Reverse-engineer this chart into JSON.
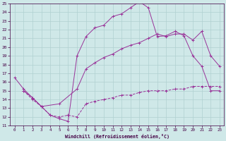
{
  "bg_color": "#cfe8e8",
  "grid_color": "#b0d0d0",
  "line_color": "#993399",
  "xlim": [
    -0.5,
    23.5
  ],
  "ylim": [
    11,
    25
  ],
  "xticks": [
    0,
    1,
    2,
    3,
    4,
    5,
    6,
    7,
    8,
    9,
    10,
    11,
    12,
    13,
    14,
    15,
    16,
    17,
    18,
    19,
    20,
    21,
    22,
    23
  ],
  "yticks": [
    11,
    12,
    13,
    14,
    15,
    16,
    17,
    18,
    19,
    20,
    21,
    22,
    23,
    24,
    25
  ],
  "xlabel": "Windchill (Refroidissement éolien,°C)",
  "line1_x": [
    0,
    1,
    2,
    3,
    4,
    5,
    6,
    7,
    8,
    9,
    10,
    11,
    12,
    13,
    14,
    15,
    16,
    17,
    18,
    19,
    20,
    21,
    22,
    23
  ],
  "line1_y": [
    16.5,
    15.2,
    14.2,
    13.2,
    12.2,
    11.8,
    11.5,
    19.0,
    21.2,
    22.2,
    22.5,
    23.5,
    23.8,
    24.5,
    25.2,
    24.5,
    21.2,
    21.3,
    21.8,
    21.3,
    19.0,
    17.8,
    15.0,
    15.0
  ],
  "line2_x": [
    1,
    2,
    3,
    5,
    7,
    8,
    9,
    10,
    11,
    12,
    13,
    14,
    15,
    16,
    17,
    18,
    19,
    20,
    21,
    22,
    23
  ],
  "line2_y": [
    15.0,
    14.2,
    13.2,
    13.5,
    15.2,
    17.5,
    18.2,
    18.8,
    19.2,
    19.8,
    20.2,
    20.5,
    21.0,
    21.5,
    21.2,
    21.5,
    21.5,
    20.8,
    21.8,
    19.0,
    17.8
  ],
  "line3_x": [
    1,
    2,
    3,
    4,
    5,
    6,
    7,
    8,
    9,
    10,
    11,
    12,
    13,
    14,
    15,
    16,
    17,
    18,
    19,
    20,
    21,
    22,
    23
  ],
  "line3_y": [
    15.0,
    14.0,
    13.2,
    12.2,
    12.0,
    12.2,
    12.0,
    13.5,
    13.8,
    14.0,
    14.2,
    14.5,
    14.5,
    14.8,
    15.0,
    15.0,
    15.0,
    15.2,
    15.2,
    15.5,
    15.5,
    15.5,
    15.5
  ]
}
